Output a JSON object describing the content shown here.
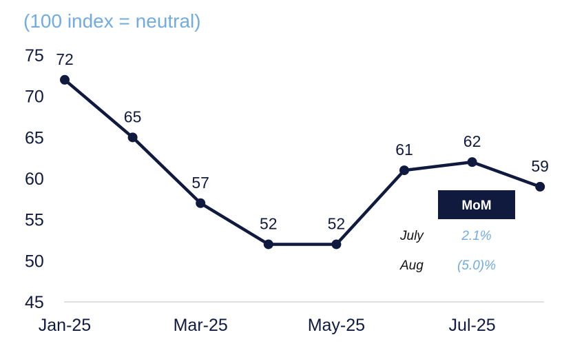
{
  "chart_data": {
    "type": "line",
    "subtitle": "(100 index = neutral)",
    "x": [
      "Jan-25",
      "Feb-25",
      "Mar-25",
      "Apr-25",
      "May-25",
      "Jun-25",
      "Jul-25",
      "Aug-25"
    ],
    "x_tick_labels": [
      "Jan-25",
      "Mar-25",
      "May-25",
      "Jul-25"
    ],
    "y_ticks": [
      45,
      50,
      55,
      60,
      65,
      70,
      75
    ],
    "ylim": [
      45,
      75
    ],
    "values": [
      72,
      65,
      57,
      52,
      52,
      61,
      62,
      59
    ],
    "data_labels": [
      "72",
      "65",
      "57",
      "52",
      "52",
      "61",
      "62",
      "59"
    ],
    "grid": false,
    "line_color": "#0f1a3e",
    "accent_color": "#72abe0"
  },
  "mom_table": {
    "header": "MoM",
    "rows": [
      {
        "label": "July",
        "value": "2.1%"
      },
      {
        "label": "Aug",
        "value": "(5.0)%"
      }
    ],
    "header_bg": "#0f1a3e"
  }
}
